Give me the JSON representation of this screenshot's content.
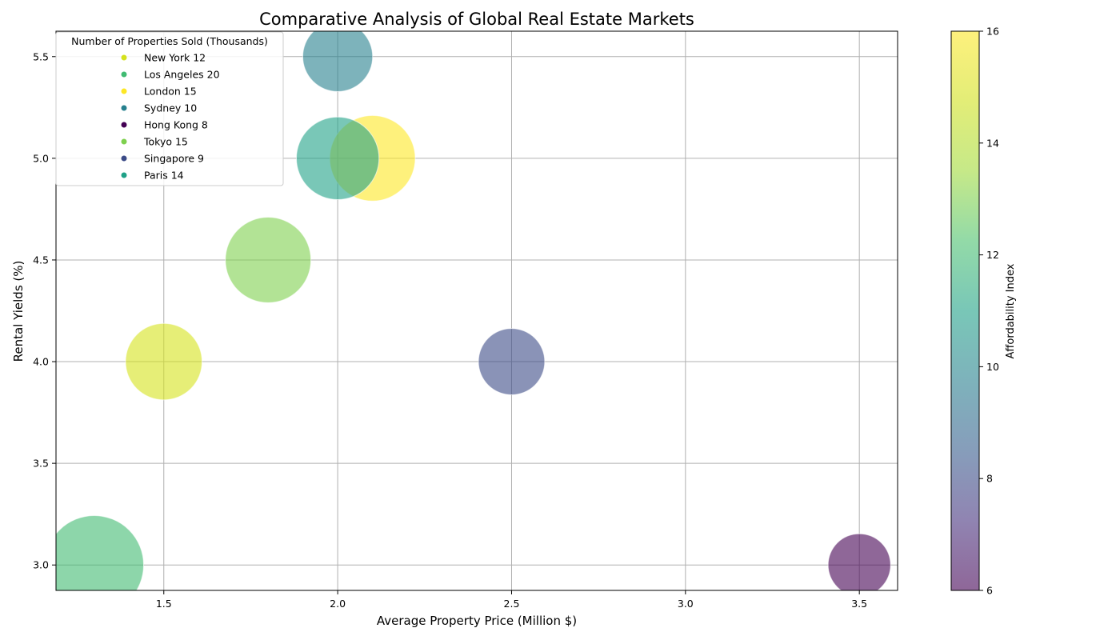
{
  "chart_data": {
    "type": "scatter",
    "title": "Comparative Analysis of Global Real Estate Markets",
    "xlabel": "Average Property Price (Million $)",
    "ylabel": "Rental Yields (%)",
    "xlim": [
      1.19,
      3.61
    ],
    "ylim": [
      2.875,
      5.625
    ],
    "xticks": [
      "1.5",
      "2.0",
      "2.5",
      "3.0",
      "3.5"
    ],
    "yticks": [
      "3.0",
      "3.5",
      "4.0",
      "4.5",
      "5.0",
      "5.5"
    ],
    "grid": true,
    "legend": {
      "title": "Number of Properties Sold (Thousands)",
      "placement": "top-left"
    },
    "colorbar": {
      "label": "Affordability Index",
      "min": 6,
      "max": 16,
      "ticks": [
        "6",
        "8",
        "10",
        "12",
        "14",
        "16"
      ],
      "colormap": "viridis"
    },
    "points": [
      {
        "city": "New York",
        "legend_label": "New York 12",
        "x": 1.5,
        "y": 4.0,
        "sold": 12,
        "affordability": 14.9
      },
      {
        "city": "Los Angeles",
        "legend_label": "Los Angeles 20",
        "x": 1.3,
        "y": 3.0,
        "sold": 20,
        "affordability": 12.0
      },
      {
        "city": "London",
        "legend_label": "London 15",
        "x": 2.1,
        "y": 5.0,
        "sold": 15,
        "affordability": 16.0
      },
      {
        "city": "Sydney",
        "legend_label": "Sydney 10",
        "x": 2.0,
        "y": 5.5,
        "sold": 10,
        "affordability": 9.8
      },
      {
        "city": "Hong Kong",
        "legend_label": "Hong Kong 8",
        "x": 3.5,
        "y": 3.0,
        "sold": 8,
        "affordability": 6.0
      },
      {
        "city": "Tokyo",
        "legend_label": "Tokyo 15",
        "x": 1.8,
        "y": 4.5,
        "sold": 15,
        "affordability": 13.0
      },
      {
        "city": "Singapore",
        "legend_label": "Singapore 9",
        "x": 2.5,
        "y": 4.0,
        "sold": 9,
        "affordability": 8.0
      },
      {
        "city": "Paris",
        "legend_label": "Paris 14",
        "x": 2.0,
        "y": 5.0,
        "sold": 14,
        "affordability": 11.0
      }
    ]
  }
}
